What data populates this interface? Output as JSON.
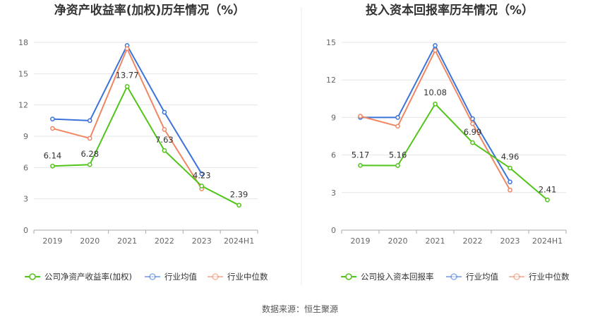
{
  "source_text": "数据来源：恒生聚源",
  "chart_data": [
    {
      "type": "line",
      "title": "净资产收益率(加权)历年情况（%）",
      "categories": [
        "2019",
        "2020",
        "2021",
        "2022",
        "2023",
        "2024H1"
      ],
      "ylim": [
        0,
        18
      ],
      "yticks": [
        0,
        3,
        6,
        9,
        12,
        15,
        18
      ],
      "grid": true,
      "legend_position": "bottom",
      "series": [
        {
          "name": "公司净资产收益率(加权)",
          "color": "#52c41a",
          "values": [
            6.14,
            6.28,
            13.77,
            7.63,
            4.23,
            2.39
          ],
          "labels": [
            "6.14",
            "6.28",
            "13.77",
            "7.63",
            "4.23",
            "2.39"
          ]
        },
        {
          "name": "行业均值",
          "color": "#3b73d9",
          "values": [
            10.65,
            10.5,
            17.7,
            11.3,
            5.4,
            null
          ]
        },
        {
          "name": "行业中位数",
          "color": "#f08762",
          "values": [
            9.75,
            8.8,
            17.4,
            9.65,
            3.95,
            null
          ]
        }
      ]
    },
    {
      "type": "line",
      "title": "投入资本回报率历年情况（%）",
      "categories": [
        "2019",
        "2020",
        "2021",
        "2022",
        "2023",
        "2024H1"
      ],
      "ylim": [
        0,
        15
      ],
      "yticks": [
        0,
        3,
        6,
        9,
        12,
        15
      ],
      "grid": true,
      "legend_position": "bottom",
      "series": [
        {
          "name": "公司投入资本回报率",
          "color": "#52c41a",
          "values": [
            5.17,
            5.16,
            10.08,
            6.99,
            4.96,
            2.41
          ],
          "labels": [
            "5.17",
            "5.16",
            "10.08",
            "6.99",
            "4.96",
            "2.41"
          ]
        },
        {
          "name": "行业均值",
          "color": "#3b73d9",
          "values": [
            9.0,
            9.0,
            14.75,
            8.9,
            3.85,
            null
          ]
        },
        {
          "name": "行业中位数",
          "color": "#f08762",
          "values": [
            9.1,
            8.3,
            14.35,
            8.5,
            3.2,
            null
          ]
        }
      ]
    }
  ]
}
